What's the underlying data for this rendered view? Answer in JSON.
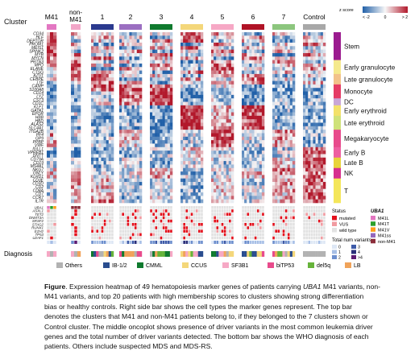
{
  "chart_data": {
    "type": "heatmap",
    "title": "",
    "heatmap_columns": {
      "cluster_label": "Cluster",
      "groups": [
        {
          "label": "M41",
          "color": "#e377c2",
          "n": 3
        },
        {
          "label": "non-M41",
          "color": "#f2a6c8",
          "n": 3
        },
        {
          "label": "1",
          "color": "#2b3a8f",
          "n": 9
        },
        {
          "label": "2",
          "color": "#9b6fc1",
          "n": 9
        },
        {
          "label": "3",
          "color": "#0f7a2e",
          "n": 9
        },
        {
          "label": "4",
          "color": "#f4d77a",
          "n": 9
        },
        {
          "label": "5",
          "color": "#f6a8c5",
          "n": 9
        },
        {
          "label": "6",
          "color": "#b01326",
          "n": 9
        },
        {
          "label": "7",
          "color": "#8cc67e",
          "n": 9
        },
        {
          "label": "Control",
          "color": "#a8a8a8",
          "n": 9
        }
      ]
    },
    "legend_zscore": {
      "title": "z score",
      "min_label": "< -2",
      "mid_label": "0",
      "max_label": "> 2",
      "colors": [
        "#2160a8",
        "#f7f7f7",
        "#b2182b"
      ]
    },
    "genes": [
      "CD34",
      "HLF",
      "DEPTOR",
      "PROM1",
      "MEIS1",
      "SPINK2",
      "MYB",
      "MYCN",
      "PRTN3",
      "MPO",
      "ELANE",
      "CTSG",
      "AZU1",
      "CEBPE",
      "LTF",
      "CAMP",
      "S100A8",
      "CD14",
      "LYZ",
      "CST3",
      "CD1C",
      "KLF1",
      "GATA1",
      "EPOR",
      "HBB",
      "HBD",
      "ALAS2",
      "SLC4A1",
      "ITGA2B",
      "PF4",
      "GP9",
      "PPBP",
      "VWF",
      "IGLL1",
      "VPREB1",
      "DNTT",
      "CD79A",
      "CD19",
      "MS4A1",
      "NKG7",
      "GNLY",
      "KLRD1",
      "CD3E",
      "CD3D",
      "CD2",
      "CD8A",
      "CD7",
      "CCR7",
      "IL7R"
    ],
    "gene_row_values": [
      [
        1.6,
        0.3,
        -0.2,
        -1.1,
        -0.4,
        1.2,
        0.6,
        -1.3,
        0.8,
        -0.7
      ],
      [
        1.4,
        -0.5,
        0.7,
        0.2,
        -1.5,
        0.9,
        -0.2,
        1.1,
        -0.8,
        0.4
      ],
      [
        1.3,
        -1.0,
        0.4,
        -0.6,
        0.8,
        1.5,
        -0.9,
        0.3,
        -1.2,
        0.5
      ],
      [
        1.2,
        0.6,
        -1.1,
        0.9,
        -0.3,
        -1.4,
        1.0,
        -0.6,
        0.2,
        0.7
      ],
      [
        1.5,
        -0.2,
        0.5,
        -1.2,
        0.7,
        1.1,
        -0.5,
        0.9,
        -0.4,
        -0.9
      ],
      [
        1.7,
        -1.1,
        0.3,
        0.8,
        -0.9,
        -0.4,
        1.3,
        -0.8,
        0.6,
        -0.2
      ],
      [
        1.1,
        0.7,
        -0.6,
        0.2,
        1.4,
        -1.0,
        -0.3,
        0.5,
        -1.6,
        0.9
      ],
      [
        1.0,
        -0.4,
        1.2,
        -0.9,
        0.3,
        0.6,
        -1.2,
        1.4,
        0.1,
        -0.5
      ],
      [
        0.6,
        1.5,
        -0.8,
        0.4,
        -0.2,
        -1.3,
        0.9,
        -0.1,
        1.1,
        -0.7
      ],
      [
        0.4,
        1.7,
        0.2,
        -1.0,
        0.9,
        -0.5,
        1.2,
        -0.9,
        0.3,
        0.1
      ],
      [
        -0.2,
        1.4,
        -1.1,
        0.7,
        0.5,
        -0.8,
        1.6,
        0.2,
        -0.6,
        0.9
      ],
      [
        0.3,
        1.2,
        0.6,
        -0.4,
        -1.3,
        0.8,
        1.0,
        -0.7,
        0.4,
        -0.2
      ],
      [
        -0.5,
        1.6,
        0.9,
        -0.2,
        0.4,
        -1.1,
        1.3,
        0.6,
        -0.9,
        0.2
      ],
      [
        0.1,
        0.8,
        1.5,
        -0.9,
        -0.3,
        0.7,
        -0.5,
        1.2,
        0.3,
        -1.0
      ],
      [
        -0.6,
        0.5,
        1.3,
        0.6,
        -1.4,
        -0.2,
        0.9,
        1.0,
        -0.8,
        0.4
      ],
      [
        -1.0,
        -0.8,
        1.6,
        1.4,
        1.1,
        -0.5,
        -0.2,
        -1.3,
        -0.9,
        -0.6
      ],
      [
        -1.3,
        -1.1,
        1.2,
        1.8,
        1.6,
        -1.2,
        -0.4,
        -1.5,
        -1.0,
        -0.9
      ],
      [
        -1.5,
        -1.4,
        -0.6,
        1.1,
        2.0,
        -1.7,
        -1.0,
        -1.6,
        -1.3,
        -1.1
      ],
      [
        -1.2,
        -1.6,
        -0.9,
        1.5,
        2.1,
        -1.5,
        -0.8,
        -1.4,
        -1.2,
        -1.0
      ],
      [
        -0.9,
        -1.3,
        -0.4,
        1.2,
        1.8,
        -1.1,
        -0.5,
        -1.2,
        -0.7,
        -0.8
      ],
      [
        -0.7,
        -0.9,
        0.2,
        0.9,
        1.5,
        -0.8,
        -0.3,
        -1.0,
        -0.5,
        -0.6
      ],
      [
        -1.1,
        -0.4,
        -1.2,
        -0.8,
        -1.5,
        2.0,
        0.6,
        1.8,
        -0.9,
        -1.0
      ],
      [
        -0.9,
        -0.6,
        -1.0,
        -1.1,
        -1.3,
        1.9,
        0.4,
        1.7,
        -0.7,
        -1.2
      ],
      [
        -1.2,
        -0.3,
        -0.8,
        -0.9,
        -1.4,
        1.7,
        0.8,
        1.6,
        -1.1,
        -0.8
      ],
      [
        -0.6,
        -1.0,
        -1.3,
        -0.7,
        -1.6,
        1.8,
        0.3,
        1.9,
        -0.8,
        -1.1
      ],
      [
        -1.0,
        -0.7,
        -0.9,
        -1.2,
        -1.2,
        1.6,
        0.7,
        1.5,
        -1.0,
        -0.9
      ],
      [
        -0.8,
        -0.5,
        -1.1,
        -0.6,
        -1.5,
        1.9,
        0.5,
        1.8,
        -0.6,
        -1.0
      ],
      [
        -1.1,
        -0.9,
        -0.7,
        -1.0,
        -1.3,
        1.7,
        0.6,
        1.6,
        -0.9,
        -0.7
      ],
      [
        0.5,
        -0.4,
        -0.7,
        0.3,
        -0.9,
        -0.6,
        1.5,
        -0.3,
        0.8,
        -1.1
      ],
      [
        0.7,
        -0.2,
        -0.9,
        0.1,
        -1.1,
        -0.3,
        1.4,
        -0.5,
        0.6,
        -0.8
      ],
      [
        0.2,
        -0.6,
        -0.5,
        0.6,
        -0.8,
        -0.7,
        1.3,
        -0.2,
        0.9,
        -1.0
      ],
      [
        0.6,
        -0.3,
        -0.8,
        0.4,
        -1.0,
        -0.4,
        1.6,
        -0.4,
        0.7,
        -0.9
      ],
      [
        0.4,
        -0.1,
        -0.6,
        0.2,
        -0.7,
        -0.5,
        1.2,
        -0.6,
        1.0,
        -0.6
      ],
      [
        -0.9,
        -1.3,
        -1.0,
        -0.8,
        -0.6,
        0.3,
        -0.4,
        -0.7,
        -0.5,
        1.2
      ],
      [
        -1.0,
        -1.1,
        -0.9,
        -1.2,
        -0.8,
        0.1,
        -0.6,
        -0.9,
        -0.3,
        1.4
      ],
      [
        -0.8,
        -1.2,
        -1.1,
        -0.9,
        -0.5,
        0.4,
        -0.3,
        -0.8,
        -0.6,
        1.1
      ],
      [
        -0.4,
        -0.6,
        -0.8,
        -0.3,
        -0.9,
        -0.2,
        -0.5,
        -0.4,
        0.2,
        1.5
      ],
      [
        -0.6,
        -0.8,
        -0.7,
        -0.5,
        -1.0,
        -0.4,
        -0.7,
        -0.6,
        0.3,
        1.6
      ],
      [
        -0.5,
        -0.7,
        -0.9,
        -0.2,
        -0.8,
        -0.3,
        -0.6,
        -0.5,
        0.1,
        1.4
      ],
      [
        0.3,
        0.6,
        -0.4,
        -0.2,
        0.5,
        -0.6,
        -0.3,
        0.2,
        0.8,
        0.9
      ],
      [
        0.5,
        0.8,
        -0.6,
        -0.1,
        0.3,
        -0.8,
        -0.5,
        0.4,
        0.9,
        1.1
      ],
      [
        0.2,
        0.7,
        -0.3,
        -0.4,
        0.6,
        -0.5,
        -0.2,
        0.3,
        0.7,
        1.0
      ],
      [
        -0.3,
        0.4,
        0.5,
        -0.6,
        -0.2,
        -0.9,
        0.3,
        -0.4,
        0.6,
        1.3
      ],
      [
        -0.5,
        0.6,
        0.3,
        -0.8,
        -0.4,
        -0.7,
        0.5,
        -0.6,
        0.8,
        1.2
      ],
      [
        -0.2,
        0.5,
        0.6,
        -0.5,
        -0.3,
        -1.0,
        0.2,
        -0.3,
        0.5,
        1.4
      ],
      [
        -0.4,
        0.3,
        0.4,
        -0.7,
        -0.5,
        -0.8,
        0.4,
        -0.5,
        0.7,
        1.1
      ],
      [
        -0.6,
        0.2,
        0.7,
        -0.4,
        -0.6,
        -0.6,
        0.1,
        -0.2,
        0.4,
        1.3
      ],
      [
        -0.3,
        0.4,
        0.5,
        -0.9,
        -0.2,
        -0.9,
        0.3,
        -0.4,
        0.6,
        1.5
      ],
      [
        -0.5,
        0.1,
        0.8,
        -0.6,
        -0.4,
        -0.7,
        0.2,
        -0.3,
        0.5,
        1.2
      ]
    ],
    "cell_types": [
      {
        "label": "Stem",
        "color": "#9b1b8f",
        "from": 0,
        "to": 7
      },
      {
        "label": "Early granulocyte",
        "color": "#f5e98d",
        "from": 8,
        "to": 11
      },
      {
        "label": "Late granulocyte",
        "color": "#f2c28a",
        "from": 12,
        "to": 14
      },
      {
        "label": "Monocyte",
        "color": "#e53b65",
        "from": 15,
        "to": 18
      },
      {
        "label": "DC",
        "color": "#c9a6d6",
        "from": 19,
        "to": 20
      },
      {
        "label": "Early erythroid",
        "color": "#f3e16a",
        "from": 21,
        "to": 23
      },
      {
        "label": "Late erythroid",
        "color": "#cfe27a",
        "from": 24,
        "to": 27
      },
      {
        "label": "Megakaryocyte",
        "color": "#e84b8c",
        "from": 28,
        "to": 32
      },
      {
        "label": "Early B",
        "color": "#ee5fa1",
        "from": 33,
        "to": 35
      },
      {
        "label": "Late B",
        "color": "#e8d43a",
        "from": 36,
        "to": 38
      },
      {
        "label": "NK",
        "color": "#d62f8e",
        "from": 39,
        "to": 41
      },
      {
        "label": "T",
        "color": "#f4e65a",
        "from": 42,
        "to": 48
      }
    ],
    "oncoprint": {
      "genes": [
        "UBA1",
        "ASXL1",
        "TET2",
        "DNMT3A",
        "SRSF2",
        "STAG2",
        "RUNX1",
        "EZH2",
        "TP53",
        "U2AF1"
      ],
      "total_label": "Total num variants",
      "status_title": "Status",
      "status_items": [
        {
          "label": "mutated",
          "color": "#e3101c"
        },
        {
          "label": "VUS",
          "color": "#f19aa0"
        },
        {
          "label": "wild type",
          "color": "#e2e2e2"
        }
      ],
      "count_legend": {
        "title": "Total num variants",
        "labels": [
          "0",
          "1",
          "2",
          "3",
          "4",
          ">4"
        ],
        "colors": [
          "#dde7f5",
          "#a7bfe6",
          "#6d8fce",
          "#3d5aa8",
          "#2a2f7a",
          "#5c1a72"
        ]
      },
      "uba1_legend": {
        "title": "UBA1",
        "items": [
          {
            "label": "M41L",
            "color": "#e377c2"
          },
          {
            "label": "M41T",
            "color": "#2ca02c"
          },
          {
            "label": "M41V",
            "color": "#ff9f1c"
          },
          {
            "label": "M41ss",
            "color": "#9467bd"
          },
          {
            "label": "non-M41",
            "color": "#8c2d3a"
          }
        ]
      }
    },
    "diagnosis": {
      "label": "Diagnosis",
      "items": [
        {
          "label": "Others",
          "color": "#b2b2b2"
        },
        {
          "label": "IB-1/2",
          "color": "#2a4d8f"
        },
        {
          "label": "CMML",
          "color": "#0f7a2e"
        },
        {
          "label": "CCUS",
          "color": "#f4d77a"
        },
        {
          "label": "SF3B1",
          "color": "#f6a8c5"
        },
        {
          "label": "biTP53",
          "color": "#e84b8c"
        },
        {
          "label": "del5q",
          "color": "#66b33a"
        },
        {
          "label": "LB",
          "color": "#f0a35a"
        }
      ]
    }
  },
  "caption": {
    "lines": [
      [
        "b:Figure",
        ". Expression heatmap of 49 hematopoiesis marker genes of patients carrying ",
        "i:UBA1",
        " M41 variants, non-"
      ],
      [
        "M41 variants, and top 20 patients with high membership scores to clusters showing strong differentiation"
      ],
      [
        "bias or healthy controls. Right side bar shows the cell types the marker genes represent. The top bar"
      ],
      [
        "denotes the clusters that M41 and non-M41 patients belong to, if they belonged to the 7 clusters shown or"
      ],
      [
        "Control cluster. The middle oncoplot shows presence of driver variants in the most common leukemia driver"
      ],
      [
        "genes and the total number of driver variants detected. The bottom bar shows the WHO diagnosis of each"
      ],
      [
        "patients. Others include suspected MDS and MDS-RS."
      ]
    ]
  }
}
